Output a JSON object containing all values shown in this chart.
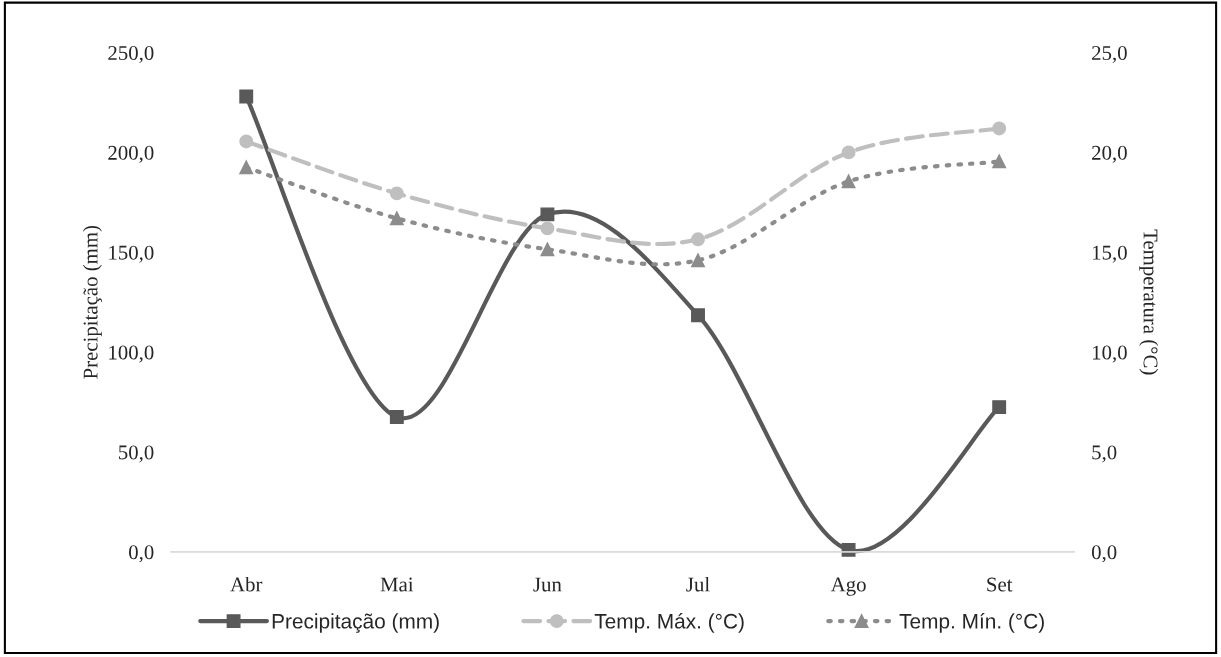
{
  "chart_data": {
    "type": "line",
    "xlabel": null,
    "ylabel": "Precipitação (mm)",
    "y2label": "Temperatura (°C)",
    "categories": [
      "Abr",
      "Mai",
      "Jun",
      "Jul",
      "Ago",
      "Set"
    ],
    "series": [
      {
        "name": "Precipitação (mm)",
        "color": "#595959",
        "values": [
          228,
          67.5,
          169,
          118.5,
          1,
          72.5
        ],
        "marker": "square",
        "line_style": "solid"
      },
      {
        "name": "Temp. Máx. (°C)",
        "color": "#bfbfbf",
        "values": [
          20.55,
          17.95,
          16.2,
          15.65,
          20.0,
          21.2
        ],
        "axis": "y2",
        "marker": "circle",
        "line_style": "dashed"
      },
      {
        "name": "Temp. Mín. (°C)",
        "color": "#8c8c8c",
        "values": [
          19.25,
          16.7,
          15.15,
          14.6,
          18.55,
          19.55
        ],
        "axis": "y2",
        "marker": "triangle",
        "line_style": "dotted"
      }
    ],
    "ylim": [
      0,
      250
    ],
    "yticks": [
      {
        "value": 0,
        "label": "0,0"
      },
      {
        "value": 50,
        "label": "50,0"
      },
      {
        "value": 100,
        "label": "100,0"
      },
      {
        "value": 150,
        "label": "150,0"
      },
      {
        "value": 200,
        "label": "200,0"
      },
      {
        "value": 250,
        "label": "250,0"
      }
    ],
    "y2lim": [
      0,
      25
    ],
    "y2ticks": [
      {
        "value": 0,
        "label": "0,0"
      },
      {
        "value": 5,
        "label": "5,0"
      },
      {
        "value": 10,
        "label": "10,0"
      },
      {
        "value": 15,
        "label": "15,0"
      },
      {
        "value": 20,
        "label": "20,0"
      },
      {
        "value": 25,
        "label": "25,0"
      }
    ],
    "grid": false,
    "legend": "bottom"
  }
}
